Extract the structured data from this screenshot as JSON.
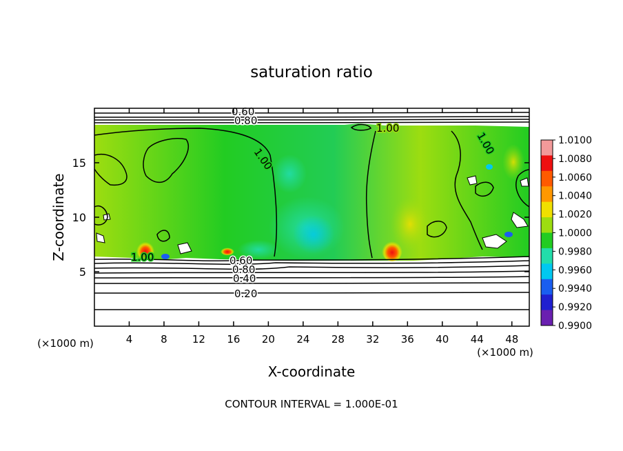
{
  "chart_data": {
    "type": "heatmap",
    "title": "saturation ratio",
    "xlabel": "X-coordinate",
    "ylabel": "Z-coordinate",
    "x_units": "(×1000 m)",
    "y_units": "(×1000 m)",
    "xlim": [
      0,
      50
    ],
    "ylim": [
      0,
      20
    ],
    "x_ticks": [
      "4",
      "8",
      "12",
      "16",
      "20",
      "24",
      "28",
      "32",
      "36",
      "40",
      "44",
      "48"
    ],
    "y_ticks": [
      "5",
      "10",
      "15"
    ],
    "contour_interval_text": "CONTOUR INTERVAL = 1.000E-01",
    "contour_labels": [
      "0.60",
      "0.80",
      "1.00",
      "1.00",
      "1.00",
      "1.00",
      "0.60",
      "0.80",
      "0.40",
      "0.20"
    ],
    "colorbar": {
      "ticks": [
        "1.0100",
        "1.0080",
        "1.0060",
        "1.0040",
        "1.0020",
        "1.0000",
        "0.9980",
        "0.9960",
        "0.9940",
        "0.9920",
        "0.9900"
      ],
      "colors": [
        "#f29a9a",
        "#ee1010",
        "#ff5a00",
        "#ff9800",
        "#f0e000",
        "#9ddd10",
        "#22cc22",
        "#22ddaa",
        "#00c8f0",
        "#1a5ef0",
        "#2020d0",
        "#6a20b0"
      ]
    },
    "regions": [
      {
        "z_range": [
          0,
          6.3
        ],
        "description": "unsaturated lower layer with contours 0.20–0.80"
      },
      {
        "z_range": [
          6.3,
          18.4
        ],
        "description": "near-saturated mid layer, values ≈ 0.997–1.008"
      },
      {
        "z_range": [
          18.4,
          20
        ],
        "description": "unsaturated top layer with contours 0.60–0.80"
      }
    ]
  }
}
